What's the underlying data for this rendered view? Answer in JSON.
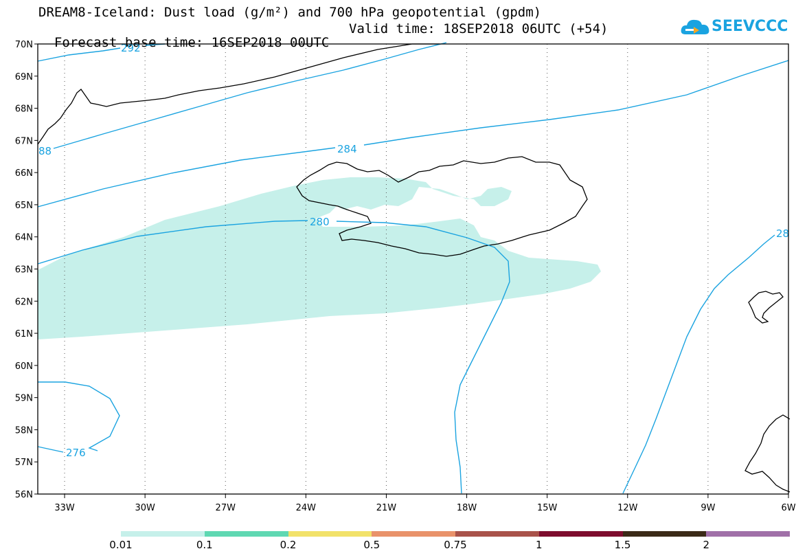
{
  "title": {
    "line1": "DREAM8-Iceland: Dust load (g/m²) and 700 hPa geopotential (gpdm)",
    "base_time": "Forecast base time: 16SEP2018 00UTC",
    "valid_time": "Valid time: 18SEP2018 06UTC (+54)"
  },
  "logo": {
    "text": "SEEVCCC",
    "icon": "cloud-icon"
  },
  "colors": {
    "contour": "#1aa3e0",
    "dust_fill": "#c6f0ea",
    "coast": "#000000"
  },
  "map": {
    "lon_range": [
      -34,
      -6
    ],
    "lat_range": [
      56,
      70
    ],
    "lat_labels": [
      "70N",
      "69N",
      "68N",
      "67N",
      "66N",
      "65N",
      "64N",
      "63N",
      "62N",
      "61N",
      "60N",
      "59N",
      "58N",
      "57N",
      "56N"
    ],
    "lon_labels": [
      "33W",
      "30W",
      "27W",
      "24W",
      "21W",
      "18W",
      "15W",
      "12W",
      "9W",
      "6W"
    ],
    "contour_labels": [
      "292",
      "88",
      "284",
      "280",
      "28",
      "276"
    ]
  },
  "colorbar": {
    "colors": [
      "#c6f0ea",
      "#5fd8b2",
      "#f2e26a",
      "#e9926a",
      "#a9534a",
      "#7e0d2e",
      "#3b2a17",
      "#a070a8"
    ],
    "labels": [
      "0.01",
      "0.1",
      "0.2",
      "0.5",
      "0.75",
      "1",
      "1.5",
      "2"
    ]
  }
}
